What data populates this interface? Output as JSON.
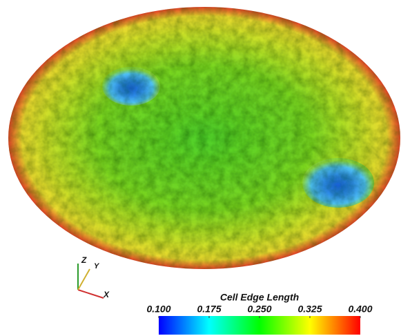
{
  "axes": {
    "x": "X",
    "y": "Y",
    "z": "Z"
  },
  "colorbar": {
    "title": "Cell Edge Length",
    "lim": [
      0.1,
      0.4
    ],
    "ticks": [
      {
        "value": 0.1,
        "label": "0.100"
      },
      {
        "value": 0.175,
        "label": "0.175"
      },
      {
        "value": 0.25,
        "label": "0.250"
      },
      {
        "value": 0.325,
        "label": "0.325"
      },
      {
        "value": 0.4,
        "label": "0.400"
      }
    ]
  }
}
